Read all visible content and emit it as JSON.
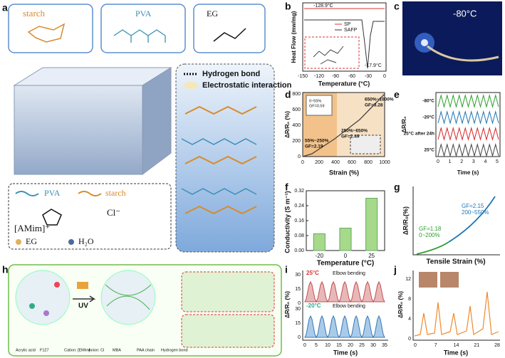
{
  "panel_labels": [
    "a",
    "b",
    "c",
    "d",
    "e",
    "f",
    "g",
    "h",
    "i",
    "j"
  ],
  "a": {
    "molecules": [
      "starch",
      "PVA",
      "EG"
    ],
    "legend_top": [
      "Hydrogen bond",
      "Electrostatic interaction"
    ],
    "legend_bottom": [
      "PVA",
      "starch",
      "Cl⁻",
      "[AMim]⁺",
      "EG",
      "H₂O"
    ]
  },
  "b": {
    "y_label": "Heat Flow (mw/mg)",
    "x_label": "Temperature (°C)",
    "xticks": [
      -150,
      -120,
      -90,
      -60,
      -30,
      0
    ],
    "series": [
      "SP",
      "SAFP"
    ],
    "annotations": [
      "-128.9°C",
      "-17.9°C"
    ]
  },
  "c": {
    "label": "-80°C"
  },
  "d": {
    "y_label": "ΔR/R₀ (%)",
    "x_label": "Strain (%)",
    "xticks": [
      0,
      200,
      400,
      600,
      800,
      1000
    ],
    "yticks": [
      0,
      200,
      400,
      600,
      800
    ],
    "annotations": [
      "650%~1000%",
      "GF=3.28",
      "250%~650%",
      "GF=2.49",
      "55%~250%",
      "GF=2.19",
      "0~55%",
      "GF=0.59"
    ]
  },
  "e": {
    "y_label": "ΔR/R₀",
    "x_label": "Time (s)",
    "xticks": [
      0,
      1,
      2,
      3,
      4,
      5
    ],
    "rows": [
      "-80°C",
      "-20°C",
      "25°C after 24h",
      "25°C"
    ]
  },
  "f": {
    "chart_data": {
      "type": "bar",
      "y_label": "Conductivity (S m⁻¹)",
      "x_label": "Temperature (°C)",
      "categories": [
        "-20",
        "0",
        "25"
      ],
      "values": [
        0.09,
        0.12,
        0.28
      ],
      "color": "#a6d98a",
      "ylim": [
        0,
        0.32
      ],
      "yticks": [
        {
          "value": 0,
          "label": "0.00"
        },
        {
          "value": 0.08,
          "label": "0.08"
        },
        {
          "value": 0.16,
          "label": "0.16"
        },
        {
          "value": 0.24,
          "label": "0.24"
        },
        {
          "value": 0.32,
          "label": "0.32"
        }
      ]
    }
  },
  "g": {
    "y_label": "ΔR/R₀(%)",
    "x_label": "Tensile Strain (%)",
    "annotations": [
      "GF=2.15",
      "200~550%",
      "GF=1.18",
      "0~200%"
    ]
  },
  "h": {
    "uv": "UV",
    "legend": [
      "Acrylic acid",
      "F127",
      "Cation: [EMIm]",
      "Anion: Cl",
      "MBA",
      "PAA chain",
      "Hydrogen bond"
    ]
  },
  "i": {
    "y_label": "ΔR/R₀ (%)",
    "x_label": "Time (s)",
    "xticks": [
      0,
      5,
      10,
      15,
      20,
      25,
      30,
      35
    ],
    "yticks": [
      0,
      15,
      30
    ],
    "rows": [
      "25°C",
      "-20°C"
    ],
    "titles": [
      "Elbow bending",
      "Elbow bending"
    ]
  },
  "j": {
    "y_label": "ΔR/R₀ (%)",
    "x_label": "Time (s)",
    "xticks": [
      0,
      7,
      14,
      21,
      28
    ],
    "yticks": [
      0,
      4,
      8,
      12
    ]
  }
}
